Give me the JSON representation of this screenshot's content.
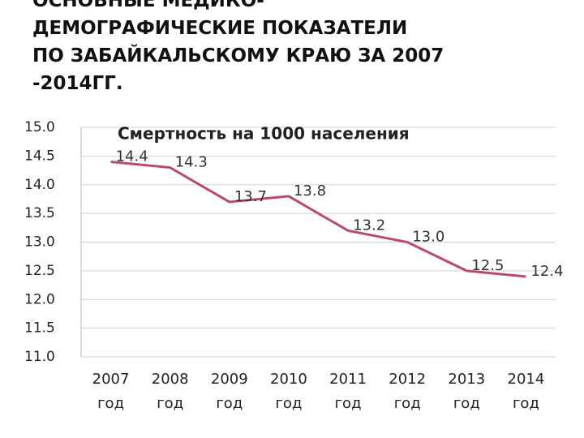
{
  "slide": {
    "title": [
      "ОСНОВНЫЕ МЕДИКО-",
      "ДЕМОГРАФИЧЕСКИЕ ПОКАЗАТЕЛИ",
      "ПО ЗАБАЙКАЛЬСКОМУ КРАЮ ЗА 2007",
      "-2014ГГ."
    ]
  },
  "chart_data": {
    "type": "line",
    "title": "Смертность на 1000 населения",
    "categories": [
      "2007 год",
      "2008 год",
      "2009 год",
      "2010 год",
      "2011 год",
      "2012 год",
      "2013 год",
      "2014 год"
    ],
    "series": [
      {
        "name": "Смертность на 1000 населения",
        "color": "#b94a6b",
        "values": [
          14.4,
          14.3,
          13.7,
          13.8,
          13.2,
          13.0,
          12.5,
          12.4
        ],
        "value_labels": [
          "14.4",
          "14.3",
          "13.7",
          "13.8",
          "13.2",
          "13.0",
          "12.5",
          "12.4"
        ]
      }
    ],
    "ylim": [
      11,
      15
    ],
    "yticks": [
      {
        "value": 11,
        "label": "11.0"
      },
      {
        "value": 11.5,
        "label": "11.5"
      },
      {
        "value": 12,
        "label": "12.0"
      },
      {
        "value": 12.5,
        "label": "12.5"
      },
      {
        "value": 13,
        "label": "13.0"
      },
      {
        "value": 13.5,
        "label": "13.5"
      },
      {
        "value": 14,
        "label": "14.0"
      },
      {
        "value": 14.5,
        "label": "14.5"
      },
      {
        "value": 15,
        "label": "15.0"
      }
    ],
    "grid": true
  }
}
